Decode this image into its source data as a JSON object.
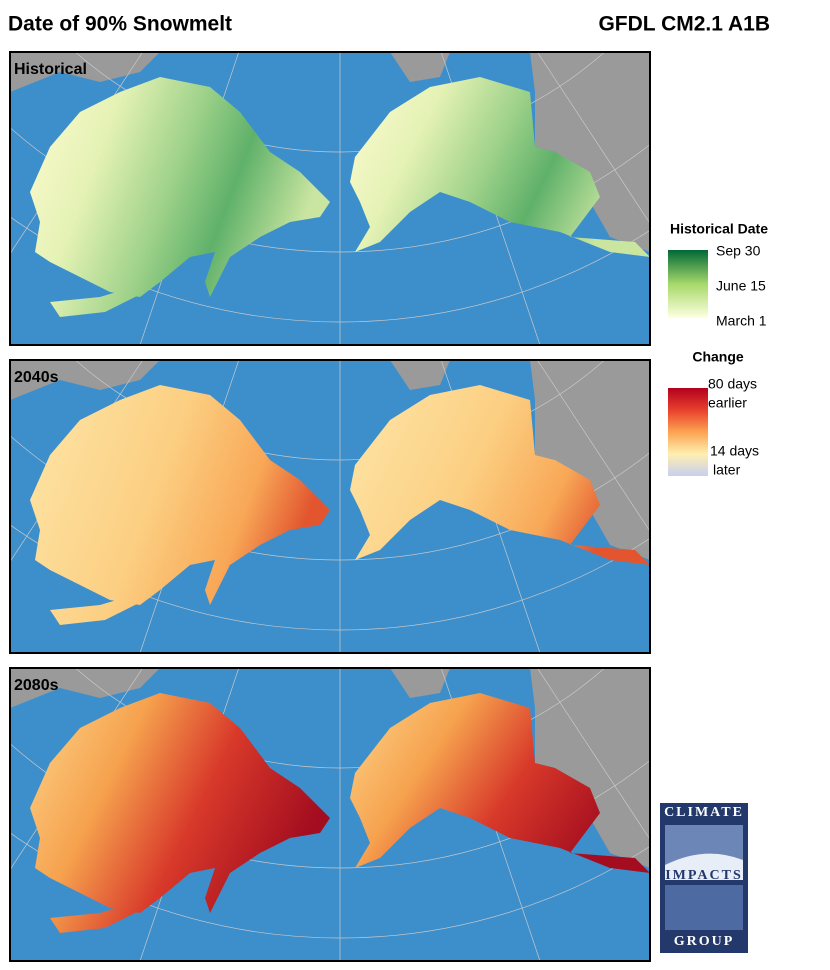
{
  "header": {
    "title": "Date of 90%  Snowmelt",
    "model": "GFDL CM2.1 A1B"
  },
  "panels": [
    {
      "label": "Historical"
    },
    {
      "label": "2040s"
    },
    {
      "label": "2080s"
    }
  ],
  "legends": [
    {
      "title": "Historical Date",
      "labels": [
        "Sep 30",
        "June 15",
        "March 1"
      ]
    },
    {
      "title": "Change",
      "labels": [
        [
          "80 days",
          "earlier"
        ],
        [
          "14 days",
          "later"
        ]
      ]
    }
  ],
  "logo": {
    "top": "CLIMATE",
    "middle": "IMPACTS",
    "bottom": "GROUP"
  }
}
